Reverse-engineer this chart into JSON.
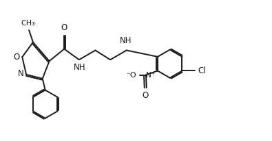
{
  "bg_color": "#ffffff",
  "line_color": "#1a1a1a",
  "line_width": 1.4,
  "font_size": 8.5,
  "xlim": [
    0,
    100
  ],
  "ylim": [
    0,
    52
  ]
}
